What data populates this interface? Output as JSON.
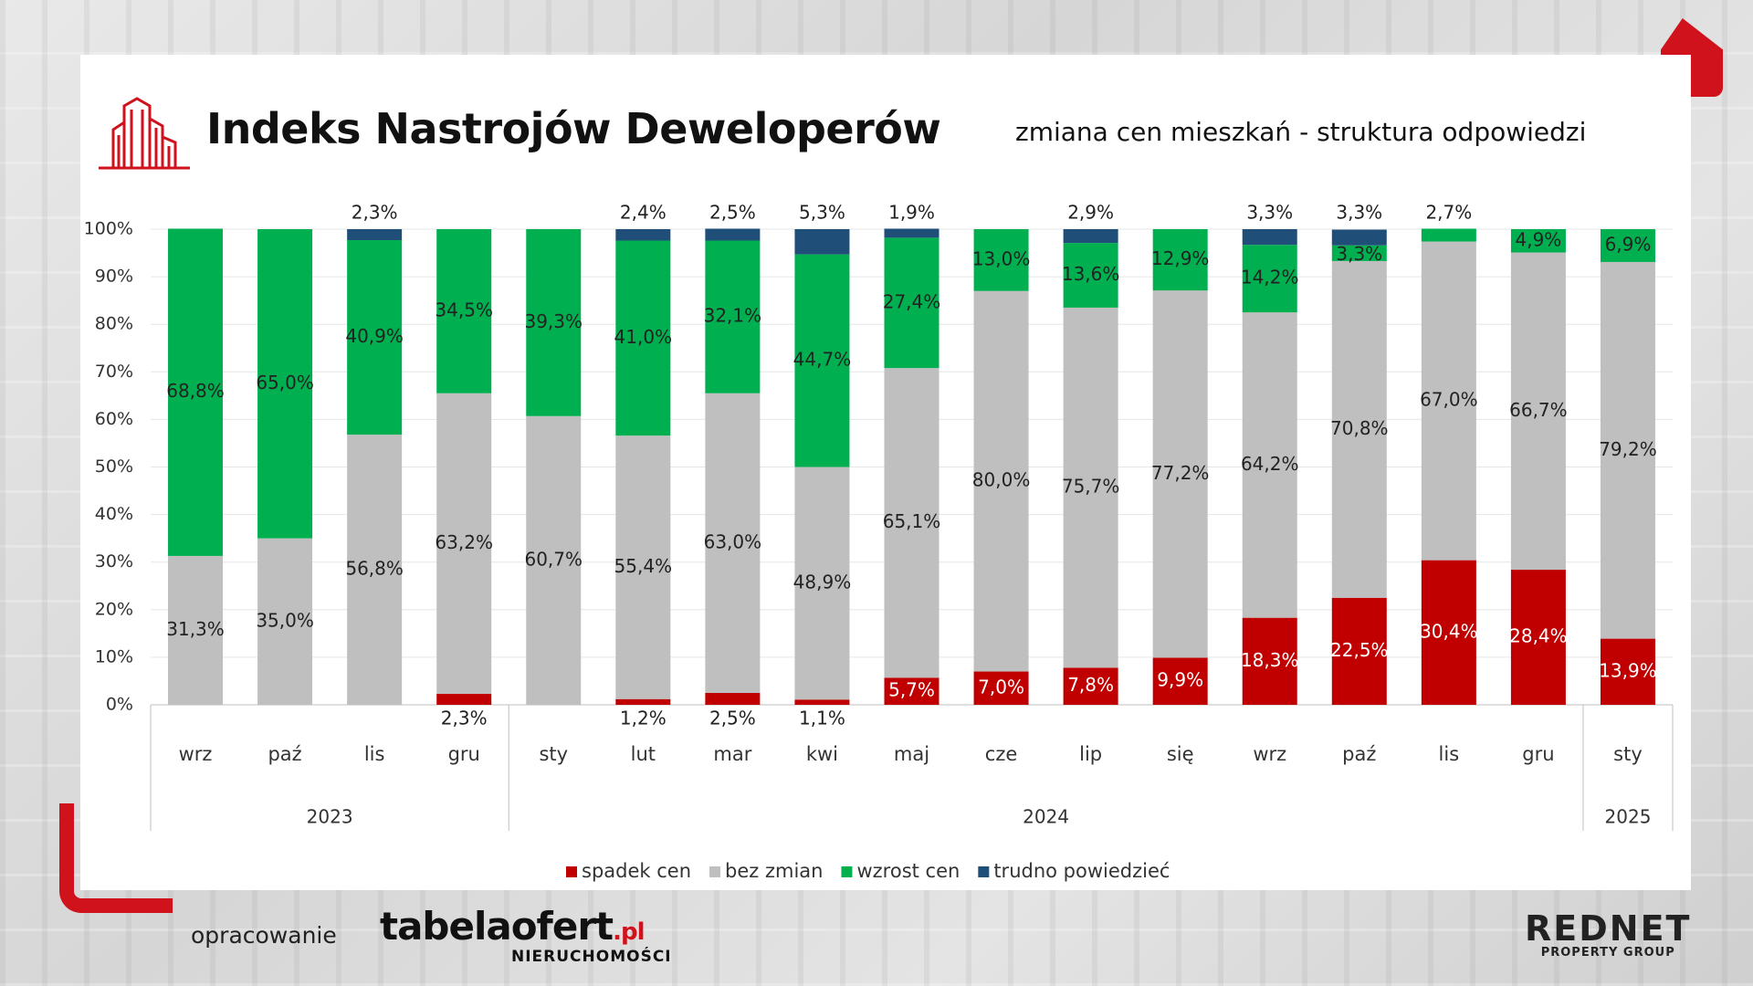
{
  "header": {
    "title": "Indeks Nastrojów Deweloperów",
    "subtitle": "zmiana cen mieszkań - struktura odpowiedzi"
  },
  "footer": {
    "label": "opracowanie",
    "tabela_main": "tabelaofert",
    "tabela_pl": ".pl",
    "tabela_sub": "NIERUCHOMOŚCI",
    "rednet_main": "REDNET",
    "rednet_sub": "PROPERTY GROUP"
  },
  "colors": {
    "spadek": "#c00000",
    "bez_zmian": "#bfbfbf",
    "wzrost": "#00b050",
    "trudno": "#1f4e79",
    "brand_red": "#d0121c"
  },
  "icons": [
    "building-icon"
  ],
  "chart_data": {
    "type": "bar",
    "stacked": true,
    "categories": [
      "wrz",
      "paź",
      "lis",
      "gru",
      "sty",
      "lut",
      "mar",
      "kwi",
      "maj",
      "cze",
      "lip",
      "się",
      "wrz",
      "paź",
      "lis",
      "gru",
      "sty"
    ],
    "year_groups": [
      {
        "label": "2023",
        "count": 4
      },
      {
        "label": "2024",
        "count": 12
      },
      {
        "label": "2025",
        "count": 1
      }
    ],
    "series": [
      {
        "name": "spadek cen",
        "color": "#c00000",
        "values": [
          0,
          0,
          0,
          2.3,
          0,
          1.2,
          2.5,
          1.1,
          5.7,
          7.0,
          7.8,
          9.9,
          18.3,
          22.5,
          30.4,
          28.4,
          13.9
        ],
        "labels": [
          "",
          "",
          "",
          "2,3%",
          "",
          "1,2%",
          "2,5%",
          "1,1%",
          "5,7%",
          "7,0%",
          "7,8%",
          "9,9%",
          "18,3%",
          "22,5%",
          "30,4%",
          "28,4%",
          "13,9%"
        ]
      },
      {
        "name": "bez zmian",
        "color": "#bfbfbf",
        "values": [
          31.3,
          35.0,
          56.8,
          63.2,
          60.7,
          55.4,
          63.0,
          48.9,
          65.1,
          80.0,
          75.7,
          77.2,
          64.2,
          70.8,
          67.0,
          66.7,
          79.2
        ],
        "labels": [
          "31,3%",
          "35,0%",
          "56,8%",
          "63,2%",
          "60,7%",
          "55,4%",
          "63,0%",
          "48,9%",
          "65,1%",
          "80,0%",
          "75,7%",
          "77,2%",
          "64,2%",
          "70,8%",
          "67,0%",
          "66,7%",
          "79,2%"
        ]
      },
      {
        "name": "wzrost cen",
        "color": "#00b050",
        "values": [
          68.8,
          65.0,
          40.9,
          34.5,
          39.3,
          41.0,
          32.1,
          44.7,
          27.4,
          13.0,
          13.6,
          12.9,
          14.2,
          3.3,
          2.7,
          4.9,
          6.9
        ],
        "labels": [
          "68,8%",
          "65,0%",
          "40,9%",
          "34,5%",
          "39,3%",
          "41,0%",
          "32,1%",
          "44,7%",
          "27,4%",
          "13,0%",
          "13,6%",
          "12,9%",
          "14,2%",
          "3,3%",
          "2,7%",
          "4,9%",
          "6,9%"
        ]
      },
      {
        "name": "trudno powiedzieć",
        "color": "#1f4e79",
        "values": [
          0,
          0,
          2.3,
          0,
          0,
          2.4,
          2.5,
          5.3,
          1.9,
          0,
          2.9,
          0,
          3.3,
          3.3,
          0,
          0,
          0
        ],
        "labels": [
          "",
          "",
          "2,3%",
          "",
          "",
          "2,4%",
          "2,5%",
          "5,3%",
          "1,9%",
          "",
          "2,9%",
          "",
          "3,3%",
          "3,3%",
          "",
          "",
          ""
        ]
      }
    ],
    "ylim": [
      0,
      100
    ],
    "yticks": [
      "0%",
      "10%",
      "20%",
      "30%",
      "40%",
      "50%",
      "60%",
      "70%",
      "80%",
      "90%",
      "100%"
    ],
    "grid": true,
    "legend_position": "bottom"
  }
}
